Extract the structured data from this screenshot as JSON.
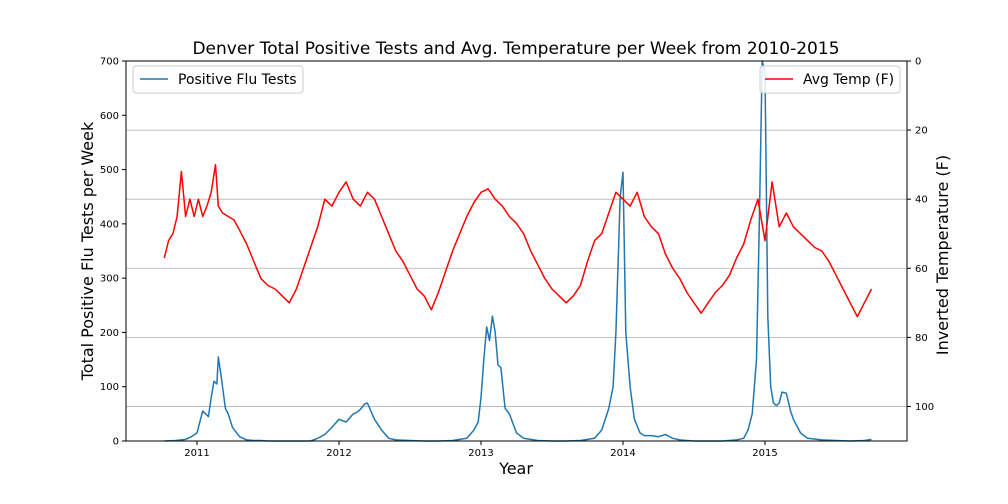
{
  "chart_data": {
    "type": "line",
    "title": "Denver Total Positive Tests and Avg. Temperature per Week from 2010-2015",
    "xlabel": "Year",
    "ylabel_left": "Total Positive Flu Tests per Week",
    "ylabel_right": "Inverted Temperature (F)",
    "xlim": [
      2010.5,
      2016.0
    ],
    "ylim_left": [
      0,
      700
    ],
    "ylim_right": [
      110,
      0
    ],
    "right_axis_inverted": true,
    "x_ticks": [
      2011,
      2012,
      2013,
      2014,
      2015
    ],
    "x_tick_labels": [
      "2011",
      "2012",
      "2013",
      "2014",
      "2015"
    ],
    "y_left_ticks": [
      0,
      100,
      200,
      300,
      400,
      500,
      600,
      700
    ],
    "y_right_ticks": [
      0,
      20,
      40,
      60,
      80,
      100
    ],
    "grid": "horizontal lines at right-axis ticks",
    "legend_left": {
      "placement": "upper-left",
      "label": "Positive Flu Tests",
      "color": "#1f77b4"
    },
    "legend_right": {
      "placement": "upper-right",
      "label": "Avg Temp (F)",
      "color": "#ff0000"
    },
    "series": [
      {
        "name": "Positive Flu Tests",
        "axis": "left",
        "color": "#1f77b4",
        "x": [
          2010.77,
          2010.85,
          2010.92,
          2010.96,
          2011.0,
          2011.04,
          2011.08,
          2011.1,
          2011.12,
          2011.14,
          2011.15,
          2011.17,
          2011.2,
          2011.22,
          2011.25,
          2011.3,
          2011.35,
          2011.4,
          2011.45,
          2011.5,
          2011.6,
          2011.7,
          2011.8,
          2011.85,
          2011.9,
          2011.95,
          2012.0,
          2012.05,
          2012.1,
          2012.12,
          2012.15,
          2012.18,
          2012.2,
          2012.25,
          2012.3,
          2012.35,
          2012.4,
          2012.5,
          2012.6,
          2012.7,
          2012.8,
          2012.9,
          2012.95,
          2012.98,
          2013.0,
          2013.02,
          2013.04,
          2013.06,
          2013.08,
          2013.1,
          2013.12,
          2013.14,
          2013.17,
          2013.2,
          2013.25,
          2013.3,
          2013.4,
          2013.5,
          2013.6,
          2013.7,
          2013.8,
          2013.85,
          2013.9,
          2013.93,
          2013.95,
          2013.98,
          2014.0,
          2014.02,
          2014.05,
          2014.08,
          2014.12,
          2014.15,
          2014.2,
          2014.25,
          2014.3,
          2014.35,
          2014.4,
          2014.45,
          2014.5,
          2014.6,
          2014.7,
          2014.8,
          2014.85,
          2014.88,
          2014.91,
          2014.94,
          2014.96,
          2014.98,
          2015.0,
          2015.02,
          2015.04,
          2015.06,
          2015.08,
          2015.1,
          2015.12,
          2015.15,
          2015.18,
          2015.2,
          2015.25,
          2015.3,
          2015.4,
          2015.5,
          2015.6,
          2015.7,
          2015.75
        ],
        "values": [
          0,
          1,
          3,
          8,
          15,
          55,
          45,
          80,
          110,
          105,
          155,
          120,
          60,
          50,
          25,
          8,
          2,
          1,
          1,
          0,
          0,
          0,
          0,
          5,
          12,
          25,
          40,
          35,
          50,
          52,
          58,
          68,
          70,
          40,
          20,
          5,
          2,
          1,
          0,
          0,
          1,
          5,
          20,
          35,
          80,
          150,
          210,
          185,
          230,
          200,
          140,
          135,
          60,
          50,
          15,
          5,
          1,
          0,
          0,
          1,
          5,
          20,
          60,
          100,
          200,
          450,
          495,
          200,
          100,
          40,
          15,
          10,
          10,
          8,
          12,
          5,
          2,
          1,
          0,
          0,
          0,
          2,
          5,
          20,
          50,
          150,
          400,
          700,
          680,
          230,
          100,
          70,
          65,
          70,
          90,
          88,
          55,
          40,
          15,
          5,
          2,
          1,
          0,
          1,
          3
        ]
      },
      {
        "name": "Avg Temp (F)",
        "axis": "right",
        "color": "#ff0000",
        "x": [
          2010.77,
          2010.8,
          2010.83,
          2010.86,
          2010.89,
          2010.92,
          2010.95,
          2010.98,
          2011.01,
          2011.04,
          2011.07,
          2011.1,
          2011.13,
          2011.15,
          2011.18,
          2011.22,
          2011.26,
          2011.3,
          2011.35,
          2011.4,
          2011.45,
          2011.5,
          2011.55,
          2011.6,
          2011.65,
          2011.7,
          2011.75,
          2011.8,
          2011.85,
          2011.9,
          2011.95,
          2012.0,
          2012.05,
          2012.1,
          2012.15,
          2012.2,
          2012.25,
          2012.3,
          2012.35,
          2012.4,
          2012.45,
          2012.5,
          2012.55,
          2012.6,
          2012.65,
          2012.7,
          2012.75,
          2012.8,
          2012.85,
          2012.9,
          2012.95,
          2013.0,
          2013.05,
          2013.1,
          2013.15,
          2013.2,
          2013.25,
          2013.3,
          2013.35,
          2013.4,
          2013.45,
          2013.5,
          2013.55,
          2013.6,
          2013.65,
          2013.7,
          2013.75,
          2013.8,
          2013.85,
          2013.9,
          2013.95,
          2014.0,
          2014.05,
          2014.1,
          2014.15,
          2014.2,
          2014.25,
          2014.3,
          2014.35,
          2014.4,
          2014.45,
          2014.5,
          2014.55,
          2014.6,
          2014.65,
          2014.7,
          2014.75,
          2014.8,
          2014.85,
          2014.9,
          2014.95,
          2015.0,
          2015.05,
          2015.1,
          2015.15,
          2015.2,
          2015.25,
          2015.3,
          2015.35,
          2015.4,
          2015.45,
          2015.5,
          2015.55,
          2015.6,
          2015.65,
          2015.7,
          2015.75
        ],
        "values": [
          57,
          52,
          50,
          45,
          32,
          45,
          40,
          45,
          40,
          45,
          42,
          38,
          30,
          42,
          44,
          45,
          46,
          49,
          53,
          58,
          63,
          65,
          66,
          68,
          70,
          66,
          60,
          54,
          48,
          40,
          42,
          38,
          35,
          40,
          42,
          38,
          40,
          45,
          50,
          55,
          58,
          62,
          66,
          68,
          72,
          67,
          61,
          55,
          50,
          45,
          41,
          38,
          37,
          40,
          42,
          45,
          47,
          50,
          55,
          59,
          63,
          66,
          68,
          70,
          68,
          65,
          58,
          52,
          50,
          44,
          38,
          40,
          42,
          38,
          45,
          48,
          50,
          56,
          60,
          63,
          67,
          70,
          73,
          70,
          67,
          65,
          62,
          57,
          53,
          46,
          40,
          52,
          35,
          48,
          44,
          48,
          50,
          52,
          54,
          55,
          58,
          62,
          66,
          70,
          74,
          70,
          66
        ]
      }
    ]
  }
}
